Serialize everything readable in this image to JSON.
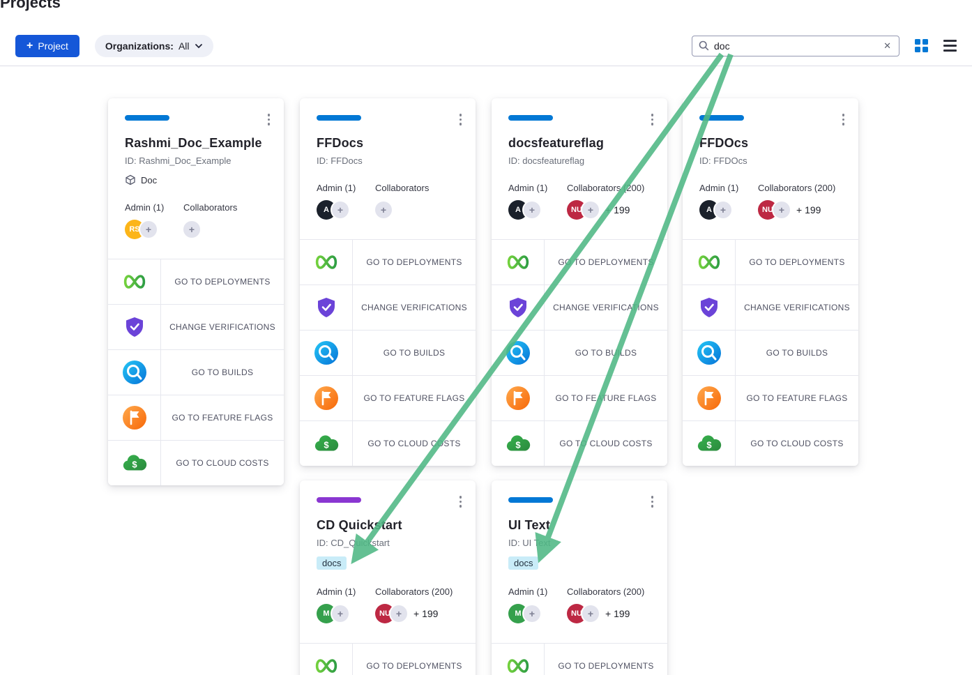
{
  "page": {
    "title": "Projects"
  },
  "glyphs": {
    "plus": "+",
    "clear": "✕"
  },
  "colors": {
    "primary": "#1557d8",
    "card_accent_blue": "#0278d5",
    "card_accent_purple": "#8a36d1",
    "chip_bg": "#c9ecf8",
    "annotation_green": "#4fb885"
  },
  "icons": {
    "search": "magnifier",
    "clear": "x-clear",
    "grid_view": "grid-2x2",
    "list_view": "hamburger-list",
    "org_filter_chevron": "chevron-down",
    "card_menu": "kebab-vertical-dots",
    "organization": "cube-outline",
    "deployments": "pipeline-infinity",
    "verifications": "shield-check",
    "builds": "magnifier-circle",
    "feature_flags": "flag-circle",
    "cloud_costs": "cloud-dollar"
  },
  "toolbar": {
    "new_project_label": "Project",
    "org_filter_label": "Organizations:",
    "org_filter_value": "All",
    "search_value": "doc"
  },
  "actions": {
    "deployments": {
      "label": "GO TO DEPLOYMENTS"
    },
    "verifications": {
      "label": "CHANGE VERIFICATIONS"
    },
    "builds": {
      "label": "GO TO BUILDS"
    },
    "feature_flags": {
      "label": "GO TO FEATURE FLAGS"
    },
    "cloud_costs": {
      "label": "GO TO CLOUD COSTS"
    }
  },
  "annotation": {
    "color": "#4fb885"
  },
  "cards": [
    {
      "accent_color": "#0278d5",
      "title": "Rashmi_Doc_Example",
      "project_id": "ID: Rashmi_Doc_Example",
      "org_tag": "Doc",
      "docs_chip": "",
      "admin_label": "Admin (1)",
      "collaborators_label": "Collaborators",
      "admin_avatar": {
        "text": "RS",
        "color": "#fcb519"
      },
      "collab_avatar": null,
      "collab_overflow": "",
      "actions": [
        "deployments",
        "verifications",
        "builds",
        "feature_flags",
        "cloud_costs"
      ]
    },
    {
      "accent_color": "#0278d5",
      "title": "FFDocs",
      "project_id": "ID: FFDocs",
      "org_tag": "",
      "docs_chip": "",
      "admin_label": "Admin (1)",
      "collaborators_label": "Collaborators",
      "admin_avatar": {
        "text": "A",
        "color": "#1b212b"
      },
      "collab_avatar": null,
      "collab_overflow": "",
      "actions": [
        "deployments",
        "verifications",
        "builds",
        "feature_flags",
        "cloud_costs"
      ]
    },
    {
      "accent_color": "#0278d5",
      "title": "docsfeatureflag",
      "project_id": "ID: docsfeatureflag",
      "org_tag": "",
      "docs_chip": "",
      "admin_label": "Admin (1)",
      "collaborators_label": "Collaborators (200)",
      "admin_avatar": {
        "text": "A",
        "color": "#1b212b"
      },
      "collab_avatar": {
        "text": "NU",
        "color": "#bd2843"
      },
      "collab_overflow": "+ 199",
      "actions": [
        "deployments",
        "verifications",
        "builds",
        "feature_flags",
        "cloud_costs"
      ]
    },
    {
      "accent_color": "#0278d5",
      "title": "FFDOcs",
      "project_id": "ID: FFDOcs",
      "org_tag": "",
      "docs_chip": "",
      "admin_label": "Admin (1)",
      "collaborators_label": "Collaborators (200)",
      "admin_avatar": {
        "text": "A",
        "color": "#1b212b"
      },
      "collab_avatar": {
        "text": "NU",
        "color": "#bd2843"
      },
      "collab_overflow": "+ 199",
      "actions": [
        "deployments",
        "verifications",
        "builds",
        "feature_flags",
        "cloud_costs"
      ]
    },
    {
      "accent_color": "#8a36d1",
      "title": "CD Quickstart",
      "project_id": "ID: CD_Quickstart",
      "org_tag": "",
      "docs_chip": "docs",
      "admin_label": "Admin (1)",
      "collaborators_label": "Collaborators (200)",
      "admin_avatar": {
        "text": "M",
        "color": "#35a04c"
      },
      "collab_avatar": {
        "text": "NU",
        "color": "#bd2843"
      },
      "collab_overflow": "+ 199",
      "actions": [
        "deployments"
      ]
    },
    {
      "accent_color": "#0278d5",
      "title": "UI Text",
      "project_id": "ID: UI Text",
      "org_tag": "",
      "docs_chip": "docs",
      "admin_label": "Admin (1)",
      "collaborators_label": "Collaborators (200)",
      "admin_avatar": {
        "text": "M",
        "color": "#35a04c"
      },
      "collab_avatar": {
        "text": "NU",
        "color": "#bd2843"
      },
      "collab_overflow": "+ 199",
      "actions": [
        "deployments"
      ]
    }
  ]
}
